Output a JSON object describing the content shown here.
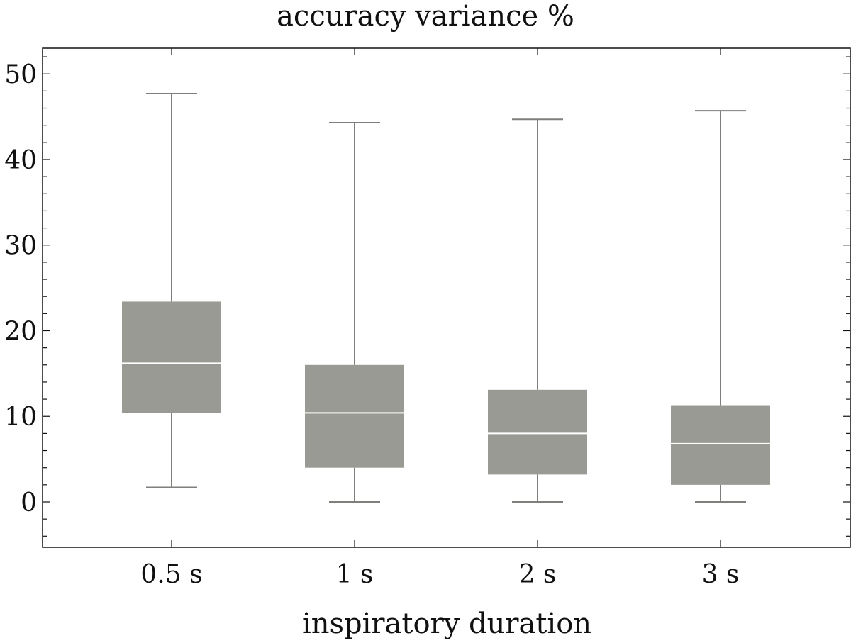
{
  "chart_data": {
    "type": "boxplot",
    "title": "accuracy variance %",
    "xlabel": "inspiratory duration",
    "ylabel": "",
    "ylim": [
      -5.3,
      53
    ],
    "yticks": [
      0,
      10,
      20,
      30,
      40,
      50
    ],
    "yticks_minor_step": 2,
    "grid": false,
    "colors": {
      "box": "#9a9a94",
      "whisker": "#7f7f7b",
      "median": "#ffffff",
      "frame": "#111111"
    },
    "categories": [
      "0.5 s",
      "1 s",
      "2 s",
      "3 s"
    ],
    "boxes": [
      {
        "label": "0.5 s",
        "whisker_low": 1.7,
        "q1": 10.4,
        "median": 16.2,
        "q3": 23.4,
        "whisker_high": 47.7
      },
      {
        "label": "1 s",
        "whisker_low": 0.0,
        "q1": 4.0,
        "median": 10.4,
        "q3": 16.0,
        "whisker_high": 44.3
      },
      {
        "label": "2 s",
        "whisker_low": 0.0,
        "q1": 3.2,
        "median": 8.0,
        "q3": 13.1,
        "whisker_high": 44.7
      },
      {
        "label": "3 s",
        "whisker_low": 0.0,
        "q1": 2.0,
        "median": 6.8,
        "q3": 11.3,
        "whisker_high": 45.7
      }
    ]
  }
}
